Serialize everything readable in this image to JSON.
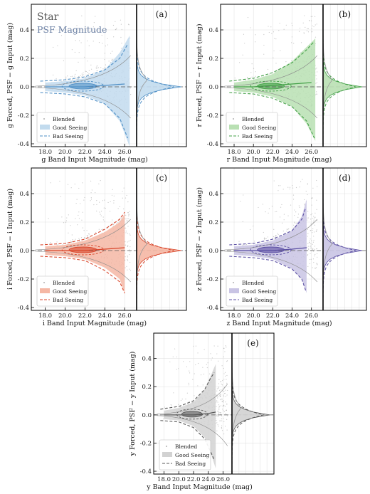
{
  "figure": {
    "title": "Star",
    "subtitle": "PSF Magnitude",
    "legend_labels": [
      "Blended",
      "Good Seeing",
      "Bad Seeing"
    ]
  },
  "chart_data": [
    {
      "type": "scatter",
      "panel": "(a)",
      "band": "g",
      "xlabel": "g Band Input Magnitude (mag)",
      "ylabel": "g Forced, PSF − g Input (mag)",
      "xlim": [
        16.6,
        27.2
      ],
      "ylim": [
        -0.42,
        0.58
      ],
      "xticks": [
        "18.0",
        "20.0",
        "22.0",
        "24.0",
        "26.0"
      ],
      "yticks": [
        "-0.4",
        "-0.2",
        "0.0",
        "0.2",
        "0.4"
      ],
      "color": "#4f8fc6",
      "fill": "#c2dbee",
      "good_seeing_outer": {
        "x": [
          18.0,
          20.0,
          22.0,
          24.0,
          25.5,
          26.5
        ],
        "upper": [
          0.03,
          0.04,
          0.06,
          0.12,
          0.24,
          0.36
        ],
        "lower": [
          -0.03,
          -0.04,
          -0.06,
          -0.12,
          -0.24,
          -0.42
        ]
      },
      "bad_seeing_outer": {
        "x": [
          17.5,
          20.0,
          22.0,
          24.0,
          25.5,
          26.3
        ],
        "upper": [
          0.04,
          0.05,
          0.07,
          0.12,
          0.2,
          0.3
        ],
        "lower": [
          -0.04,
          -0.05,
          -0.07,
          -0.12,
          -0.22,
          -0.36
        ]
      },
      "median": {
        "x": [
          18.0,
          20.0,
          22.0,
          24.0,
          26.0
        ],
        "y": [
          0.0,
          0.0,
          0.0,
          0.01,
          0.02
        ]
      }
    },
    {
      "type": "scatter",
      "panel": "(b)",
      "band": "r",
      "xlabel": "r Band Input Magnitude (mag)",
      "ylabel": "r Forced, PSF − r Input (mag)",
      "xlim": [
        16.6,
        27.2
      ],
      "ylim": [
        -0.42,
        0.58
      ],
      "xticks": [
        "18.0",
        "20.0",
        "22.0",
        "24.0",
        "26.0"
      ],
      "yticks": [
        "-0.4",
        "-0.2",
        "0.0",
        "0.2",
        "0.4"
      ],
      "color": "#43a047",
      "fill": "#b9e0b3",
      "good_seeing_outer": {
        "x": [
          18.0,
          20.0,
          22.0,
          24.0,
          25.5,
          26.4
        ],
        "upper": [
          0.03,
          0.05,
          0.09,
          0.18,
          0.28,
          0.34
        ],
        "lower": [
          -0.03,
          -0.04,
          -0.07,
          -0.14,
          -0.26,
          -0.38
        ]
      },
      "bad_seeing_outer": {
        "x": [
          17.5,
          20.0,
          22.0,
          24.0,
          25.5,
          26.3
        ],
        "upper": [
          0.04,
          0.06,
          0.1,
          0.17,
          0.26,
          0.32
        ],
        "lower": [
          -0.04,
          -0.05,
          -0.08,
          -0.14,
          -0.24,
          -0.36
        ]
      },
      "median": {
        "x": [
          18.0,
          20.0,
          22.0,
          24.0,
          26.0
        ],
        "y": [
          0.0,
          0.0,
          0.01,
          0.02,
          0.03
        ]
      }
    },
    {
      "type": "scatter",
      "panel": "(c)",
      "band": "i",
      "xlabel": "i Band Input Magnitude (mag)",
      "ylabel": "i Forced, PSF − i Input (mag)",
      "xlim": [
        16.6,
        27.2
      ],
      "ylim": [
        -0.42,
        0.58
      ],
      "xticks": [
        "18.0",
        "20.0",
        "22.0",
        "24.0",
        "26.0"
      ],
      "yticks": [
        "-0.4",
        "-0.2",
        "0.0",
        "0.2",
        "0.4"
      ],
      "color": "#d9462b",
      "fill": "#f5b7a4",
      "good_seeing_outer": {
        "x": [
          18.0,
          20.0,
          22.0,
          24.0,
          25.5,
          26.0
        ],
        "upper": [
          0.03,
          0.04,
          0.07,
          0.13,
          0.2,
          0.26
        ],
        "lower": [
          -0.03,
          -0.04,
          -0.06,
          -0.12,
          -0.2,
          -0.3
        ]
      },
      "bad_seeing_outer": {
        "x": [
          17.5,
          20.0,
          22.0,
          24.0,
          25.5,
          26.0
        ],
        "upper": [
          0.04,
          0.05,
          0.08,
          0.15,
          0.22,
          0.27
        ],
        "lower": [
          -0.04,
          -0.05,
          -0.07,
          -0.14,
          -0.22,
          -0.3
        ]
      },
      "median": {
        "x": [
          18.0,
          20.0,
          22.0,
          24.0,
          26.0
        ],
        "y": [
          0.0,
          0.0,
          0.0,
          0.01,
          0.02
        ]
      }
    },
    {
      "type": "scatter",
      "panel": "(d)",
      "band": "z",
      "xlabel": "z Band Input Magnitude (mag)",
      "ylabel": "z Forced, PSF − z Input (mag)",
      "xlim": [
        16.6,
        27.2
      ],
      "ylim": [
        -0.42,
        0.58
      ],
      "xticks": [
        "18.0",
        "20.0",
        "22.0",
        "24.0",
        "26.0"
      ],
      "yticks": [
        "-0.4",
        "-0.2",
        "0.0",
        "0.2",
        "0.4"
      ],
      "color": "#5b4fa3",
      "fill": "#c9c4e4",
      "good_seeing_outer": {
        "x": [
          18.0,
          20.0,
          22.0,
          24.0,
          25.0,
          25.5
        ],
        "upper": [
          0.03,
          0.04,
          0.07,
          0.14,
          0.24,
          0.36
        ],
        "lower": [
          -0.03,
          -0.04,
          -0.06,
          -0.13,
          -0.2,
          -0.3
        ]
      },
      "bad_seeing_outer": {
        "x": [
          17.5,
          20.0,
          22.0,
          24.0,
          25.0,
          25.4
        ],
        "upper": [
          0.04,
          0.05,
          0.08,
          0.14,
          0.22,
          0.3
        ],
        "lower": [
          -0.04,
          -0.05,
          -0.07,
          -0.13,
          -0.2,
          -0.28
        ]
      },
      "median": {
        "x": [
          18.0,
          20.0,
          22.0,
          24.0,
          25.5
        ],
        "y": [
          0.0,
          0.0,
          0.0,
          0.01,
          0.02
        ]
      }
    },
    {
      "type": "scatter",
      "panel": "(e)",
      "band": "y",
      "xlabel": "y Band Input Magnitude (mag)",
      "ylabel": "y Forced, PSF − y Input (mag)",
      "xlim": [
        16.6,
        27.2
      ],
      "ylim": [
        -0.42,
        0.58
      ],
      "xticks": [
        "18.0",
        "20.0",
        "22.0",
        "24.0",
        "26.0"
      ],
      "yticks": [
        "-0.4",
        "-0.2",
        "0.0",
        "0.2",
        "0.4"
      ],
      "color": "#5a5a5a",
      "fill": "#d2d2d2",
      "good_seeing_outer": {
        "x": [
          18.0,
          20.0,
          22.0,
          23.5,
          24.5,
          25.0
        ],
        "upper": [
          0.03,
          0.05,
          0.09,
          0.18,
          0.3,
          0.36
        ],
        "lower": [
          -0.03,
          -0.04,
          -0.08,
          -0.16,
          -0.3,
          -0.38
        ]
      },
      "bad_seeing_outer": {
        "x": [
          17.5,
          20.0,
          22.0,
          23.5,
          24.3,
          24.8
        ],
        "upper": [
          0.04,
          0.06,
          0.1,
          0.18,
          0.26,
          0.3
        ],
        "lower": [
          -0.04,
          -0.05,
          -0.09,
          -0.17,
          -0.26,
          -0.32
        ]
      },
      "median": {
        "x": [
          18.0,
          20.0,
          22.0,
          24.0,
          25.0
        ],
        "y": [
          0.0,
          0.0,
          0.0,
          0.01,
          0.02
        ]
      }
    }
  ]
}
